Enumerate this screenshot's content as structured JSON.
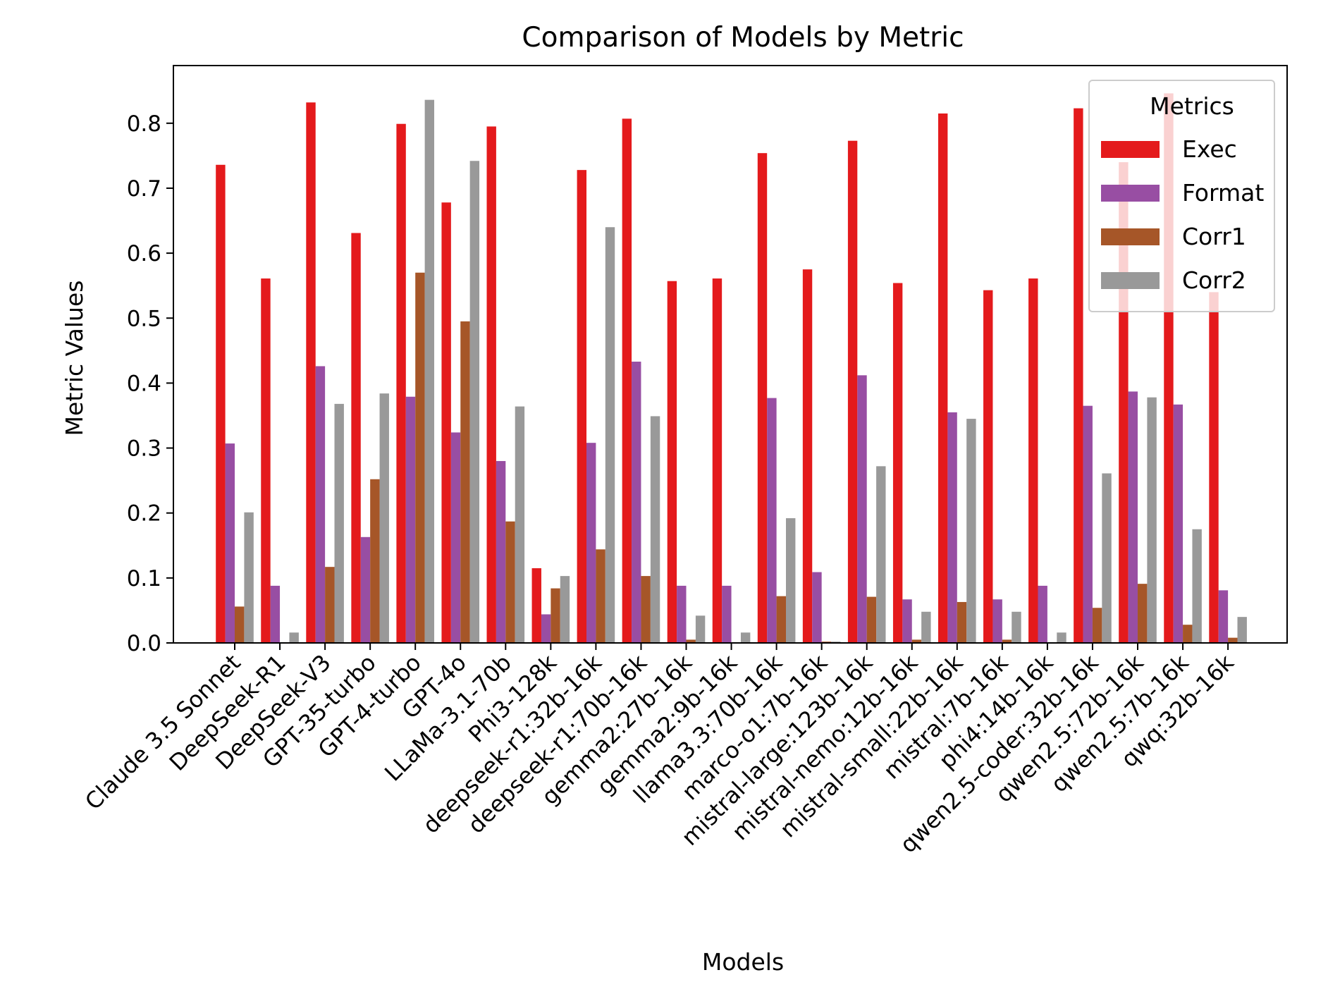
{
  "chart_data": {
    "type": "bar",
    "title": "Comparison of Models by Metric",
    "xlabel": "Models",
    "ylabel": "Metric Values",
    "ylim": [
      0,
      0.89
    ],
    "yticks": [
      0.0,
      0.1,
      0.2,
      0.3,
      0.4,
      0.5,
      0.6,
      0.7,
      0.8
    ],
    "ytick_labels": [
      "0.0",
      "0.1",
      "0.2",
      "0.3",
      "0.4",
      "0.5",
      "0.6",
      "0.7",
      "0.8"
    ],
    "grid": false,
    "legend": {
      "title": "Metrics",
      "position": "top-right"
    },
    "categories": [
      "Claude 3.5 Sonnet",
      "DeepSeek-R1",
      "DeepSeek-V3",
      "GPT-35-turbo",
      "GPT-4-turbo",
      "GPT-4o",
      "LLaMa-3.1-70b",
      "Phi3-128k",
      "deepseek-r1:32b-16k",
      "deepseek-r1:70b-16k",
      "gemma2:27b-16k",
      "gemma2:9b-16k",
      "llama3.3:70b-16k",
      "marco-o1:7b-16k",
      "mistral-large:123b-16k",
      "mistral-nemo:12b-16k",
      "mistral-small:22b-16k",
      "mistral:7b-16k",
      "phi4:14b-16k",
      "qwen2.5-coder:32b-16k",
      "qwen2.5:72b-16k",
      "qwen2.5:7b-16k",
      "qwq:32b-16k"
    ],
    "series": [
      {
        "name": "Exec",
        "color": "#e41a1c",
        "values": [
          0.736,
          0.561,
          0.832,
          0.631,
          0.799,
          0.678,
          0.795,
          0.115,
          0.728,
          0.807,
          0.557,
          0.561,
          0.754,
          0.575,
          0.773,
          0.554,
          0.815,
          0.543,
          0.561,
          0.823,
          0.74,
          0.846,
          0.54
        ]
      },
      {
        "name": "Format",
        "color": "#984ea3",
        "values": [
          0.307,
          0.088,
          0.426,
          0.163,
          0.379,
          0.324,
          0.28,
          0.044,
          0.308,
          0.433,
          0.088,
          0.088,
          0.377,
          0.109,
          0.412,
          0.067,
          0.355,
          0.067,
          0.088,
          0.365,
          0.387,
          0.367,
          0.081
        ]
      },
      {
        "name": "Corr1",
        "color": "#a65628",
        "values": [
          0.056,
          0.0,
          0.117,
          0.252,
          0.57,
          0.495,
          0.187,
          0.084,
          0.144,
          0.103,
          0.005,
          0.0,
          0.072,
          0.002,
          0.071,
          0.005,
          0.063,
          0.005,
          0.0,
          0.054,
          0.091,
          0.028,
          0.008
        ]
      },
      {
        "name": "Corr2",
        "color": "#999999",
        "values": [
          0.201,
          0.016,
          0.368,
          0.384,
          0.836,
          0.742,
          0.364,
          0.103,
          0.64,
          0.349,
          0.042,
          0.016,
          0.192,
          0.002,
          0.272,
          0.048,
          0.345,
          0.048,
          0.016,
          0.261,
          0.378,
          0.175,
          0.04
        ]
      }
    ]
  }
}
